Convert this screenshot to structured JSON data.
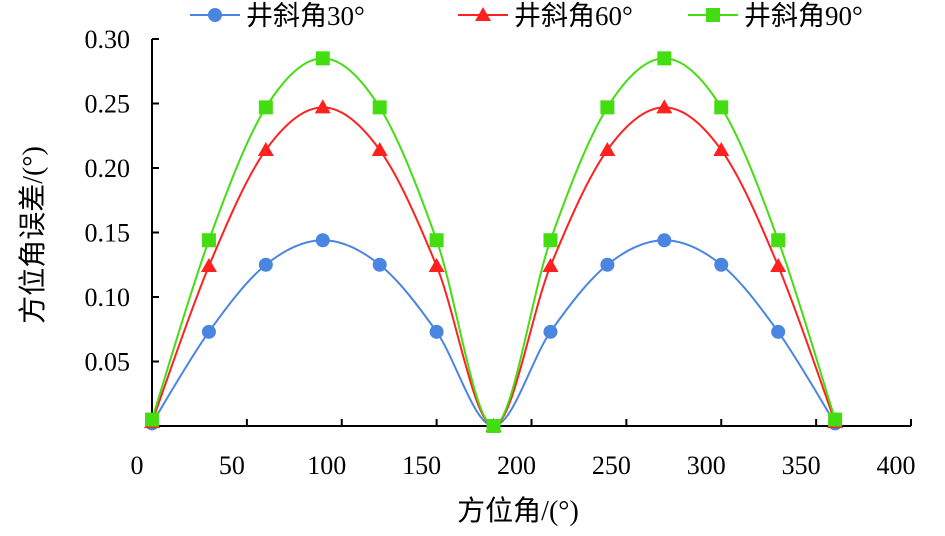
{
  "chart_data": {
    "type": "line",
    "title": "",
    "xlabel": "方位角/(°)",
    "ylabel": "方位角误差/(°)",
    "xlim": [
      0,
      400
    ],
    "ylim": [
      0,
      0.3
    ],
    "xticks": [
      "0",
      "50",
      "100",
      "150",
      "200",
      "250",
      "300",
      "350",
      "400"
    ],
    "yticks": [
      "0.05",
      "0.10",
      "0.15",
      "0.20",
      "0.25",
      "0.30"
    ],
    "grid": false,
    "legend_position": "top",
    "x": [
      0,
      30,
      60,
      90,
      120,
      150,
      180,
      210,
      240,
      270,
      300,
      330,
      360
    ],
    "series": [
      {
        "name": "井斜角30°",
        "color": "#4a86e0",
        "marker": "circle",
        "values": [
          0.002,
          0.073,
          0.125,
          0.144,
          0.125,
          0.073,
          0.0,
          0.073,
          0.125,
          0.144,
          0.125,
          0.073,
          0.002
        ]
      },
      {
        "name": "井斜角60°",
        "color": "#ff2020",
        "marker": "triangle",
        "values": [
          0.003,
          0.124,
          0.214,
          0.247,
          0.214,
          0.124,
          0.0,
          0.124,
          0.214,
          0.247,
          0.214,
          0.124,
          0.003
        ]
      },
      {
        "name": "井斜角90°",
        "color": "#44dd11",
        "marker": "square",
        "values": [
          0.005,
          0.144,
          0.247,
          0.285,
          0.247,
          0.144,
          0.0,
          0.144,
          0.247,
          0.285,
          0.247,
          0.144,
          0.005
        ]
      }
    ]
  }
}
